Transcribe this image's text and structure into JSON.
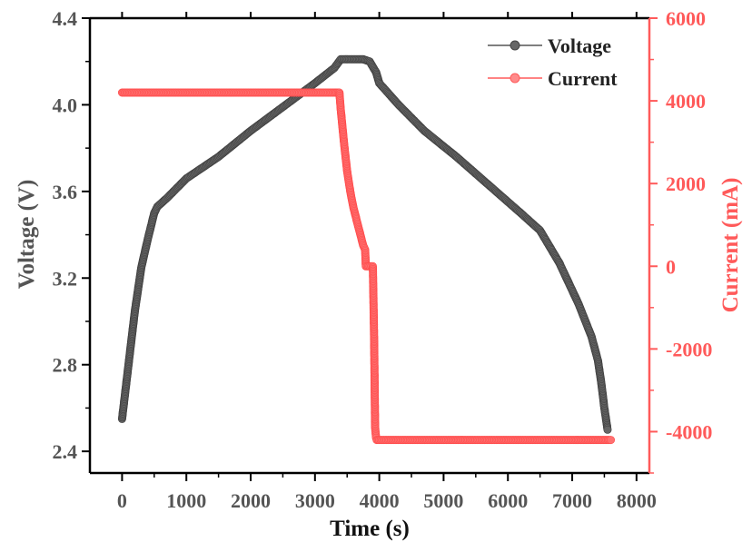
{
  "chart_data": {
    "type": "line",
    "xlabel": "Time (s)",
    "ylabel_left": "Voltage (V)",
    "ylabel_right": "Current (mA)",
    "xlim": [
      -500,
      8200
    ],
    "ylim_left": [
      2.3,
      4.4
    ],
    "ylim_right": [
      -5000,
      6000
    ],
    "x_ticks": [
      "0",
      "1000",
      "2000",
      "3000",
      "4000",
      "5000",
      "6000",
      "7000",
      "8000"
    ],
    "y_left_ticks": [
      "2.4",
      "2.8",
      "3.2",
      "3.6",
      "4.0",
      "4.4"
    ],
    "y_right_ticks": [
      "-4000",
      "-2000",
      "0",
      "2000",
      "4000",
      "6000"
    ],
    "legend_position": "top-right",
    "grid": false,
    "colors": {
      "voltage": "#555555",
      "current": "#ff5a5a",
      "axis": "#000000"
    },
    "series": [
      {
        "name": "Voltage",
        "axis": "left",
        "x": [
          0,
          100,
          200,
          300,
          400,
          500,
          550,
          700,
          1000,
          1500,
          2000,
          2500,
          3000,
          3300,
          3400,
          3600,
          3750,
          3850,
          3950,
          4000,
          4300,
          4700,
          5200,
          5700,
          6200,
          6500,
          6800,
          7100,
          7300,
          7400,
          7450,
          7500,
          7550
        ],
        "values": [
          2.55,
          2.8,
          3.05,
          3.25,
          3.38,
          3.5,
          3.53,
          3.57,
          3.66,
          3.76,
          3.88,
          3.99,
          4.1,
          4.17,
          4.21,
          4.21,
          4.21,
          4.2,
          4.15,
          4.1,
          4.0,
          3.88,
          3.76,
          3.63,
          3.5,
          3.42,
          3.27,
          3.08,
          2.93,
          2.82,
          2.72,
          2.6,
          2.5
        ]
      },
      {
        "name": "Current",
        "axis": "right",
        "x": [
          0,
          3300,
          3380,
          3400,
          3450,
          3500,
          3550,
          3600,
          3650,
          3700,
          3750,
          3780,
          3790,
          3850,
          3900,
          3920,
          3935,
          3950,
          3960,
          4000,
          5000,
          6000,
          7000,
          7600
        ],
        "values": [
          4200,
          4200,
          4200,
          3800,
          3000,
          2300,
          1800,
          1400,
          1100,
          800,
          500,
          400,
          0,
          0,
          0,
          -1800,
          -3900,
          -4150,
          -4200,
          -4200,
          -4200,
          -4200,
          -4200,
          -4200
        ]
      }
    ]
  }
}
